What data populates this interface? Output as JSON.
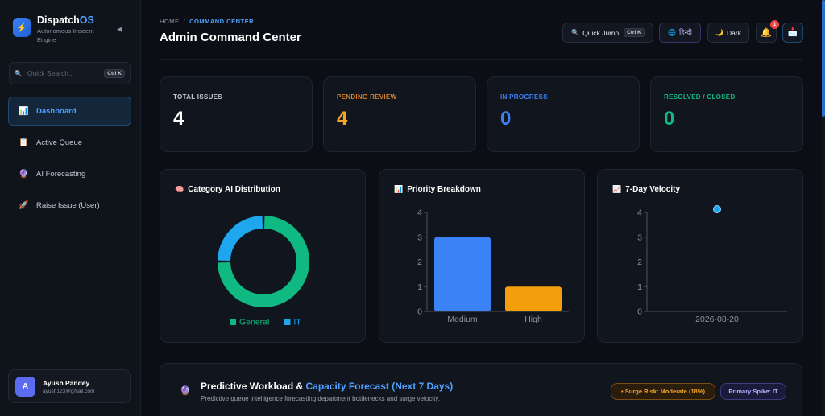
{
  "sidebar": {
    "brand_name": "Dispatch",
    "brand_name_accent": "OS",
    "brand_subtitle": "Autonomous Incident Engine",
    "collapse_icon": "◀",
    "search_placeholder": "Quick Search...",
    "search_shortcut": "Ctrl K",
    "items": [
      {
        "label": "Dashboard",
        "icon": "chart-icon",
        "glyph": "📊",
        "active": true
      },
      {
        "label": "Active Queue",
        "icon": "clipboard-icon",
        "glyph": "📋",
        "active": false
      },
      {
        "label": "AI Forecasting",
        "icon": "crystal-ball-icon",
        "glyph": "🔮",
        "active": false
      },
      {
        "label": "Raise Issue (User)",
        "icon": "rocket-icon",
        "glyph": "🚀",
        "active": false
      }
    ],
    "user": {
      "initial": "A",
      "name": "Ayush Pandey",
      "email": "ayush123@gmail.com"
    }
  },
  "header": {
    "breadcrumb_home": "HOME",
    "breadcrumb_sep": "/",
    "breadcrumb_current": "COMMAND CENTER",
    "title": "Admin Command Center",
    "quick_jump_label": "Quick Jump",
    "quick_jump_shortcut": "Ctrl K",
    "language_label": "हिन्दी",
    "theme_label": "Dark",
    "notification_count": "1"
  },
  "stats": [
    {
      "label": "TOTAL ISSUES",
      "value": "4",
      "color": "#ffffff",
      "label_color": "#c9ced8"
    },
    {
      "label": "PENDING REVIEW",
      "value": "4",
      "color": "#f5a524",
      "label_color": "#d9822b"
    },
    {
      "label": "IN PROGRESS",
      "value": "0",
      "color": "#3b82f6",
      "label_color": "#3b82f6"
    },
    {
      "label": "RESOLVED / CLOSED",
      "value": "0",
      "color": "#10b981",
      "label_color": "#10b981"
    }
  ],
  "charts": {
    "category_title": "Category AI Distribution",
    "priority_title": "Priority Breakdown",
    "velocity_title": "7-Day Velocity"
  },
  "chart_data": [
    {
      "type": "pie",
      "title": "Category AI Distribution",
      "categories": [
        "General",
        "IT"
      ],
      "values": [
        3,
        1
      ],
      "colors": [
        "#10b981",
        "#1ea7ef"
      ],
      "legend": "bottom"
    },
    {
      "type": "bar",
      "title": "Priority Breakdown",
      "categories": [
        "Medium",
        "High"
      ],
      "values": [
        3,
        1
      ],
      "colors": [
        "#3b82f6",
        "#f59e0b"
      ],
      "ylim": [
        0,
        4
      ],
      "yticks": [
        "0",
        "1",
        "2",
        "3",
        "4"
      ]
    },
    {
      "type": "scatter",
      "title": "7-Day Velocity",
      "x": [
        "2026-08-20"
      ],
      "values": [
        4
      ],
      "color": "#1ea7ef",
      "ylim": [
        0,
        4
      ],
      "yticks": [
        "0",
        "1",
        "2",
        "3",
        "4"
      ]
    }
  ],
  "forecast": {
    "title_main": "Predictive Workload & ",
    "title_accent": "Capacity Forecast (Next 7 Days)",
    "subtitle": "Predictive queue intelligence forecasting department bottlenecks and surge velocity.",
    "surge_label": "• Surge Risk: Moderate (18%)",
    "spike_label": "Primary Spike: IT"
  }
}
